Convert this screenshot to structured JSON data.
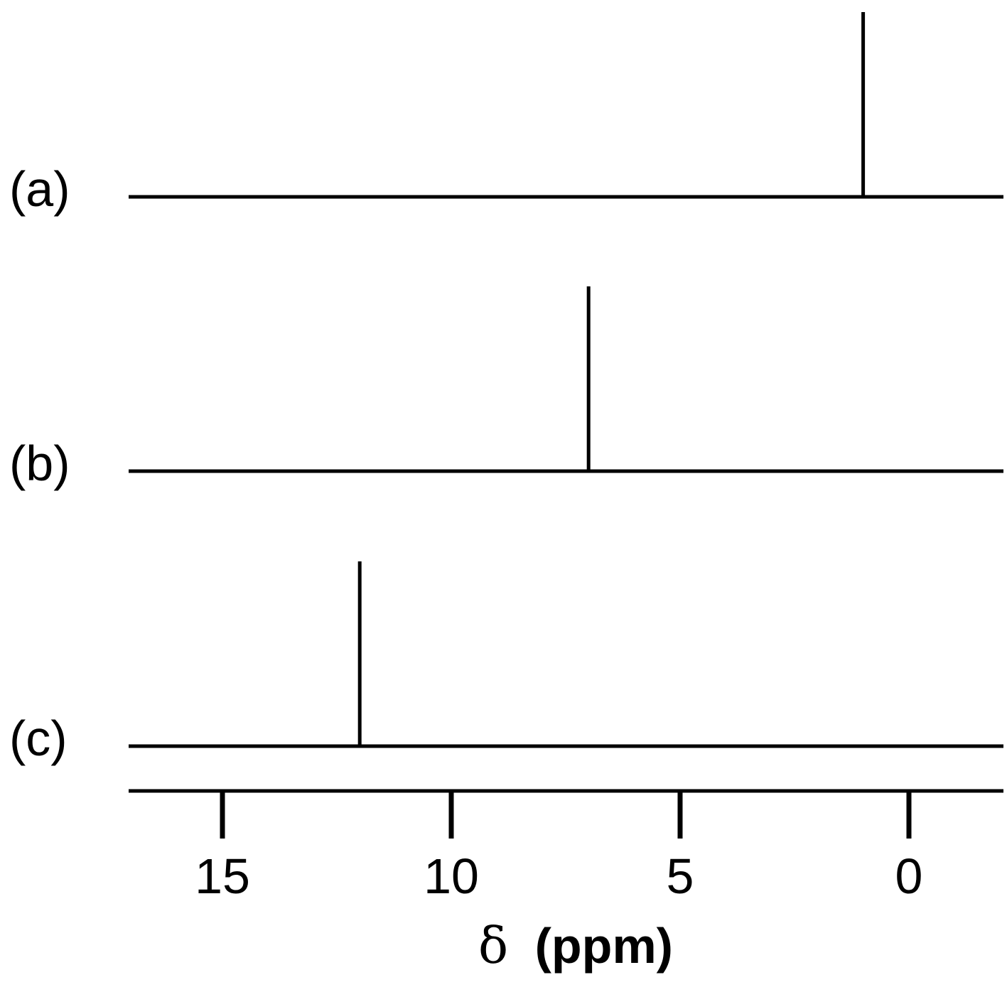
{
  "chart_data": {
    "type": "stick-spectrum",
    "xlabel_symbol": "δ",
    "xlabel_unit": "(ppm)",
    "xlim": [
      17,
      -2
    ],
    "x_reversed": true,
    "ticks": [
      {
        "value": 15,
        "label": "15"
      },
      {
        "value": 10,
        "label": "10"
      },
      {
        "value": 5,
        "label": "5"
      },
      {
        "value": 0,
        "label": "0"
      }
    ],
    "spectra": [
      {
        "label": "(a)",
        "peaks": [
          {
            "x": 1.0,
            "intensity": 1.0
          }
        ]
      },
      {
        "label": "(b)",
        "peaks": [
          {
            "x": 7.0,
            "intensity": 1.0
          }
        ]
      },
      {
        "label": "(c)",
        "peaks": [
          {
            "x": 12.0,
            "intensity": 1.0
          }
        ]
      }
    ],
    "grid": false,
    "colors": {
      "line": "#000000",
      "background": "#ffffff"
    }
  }
}
